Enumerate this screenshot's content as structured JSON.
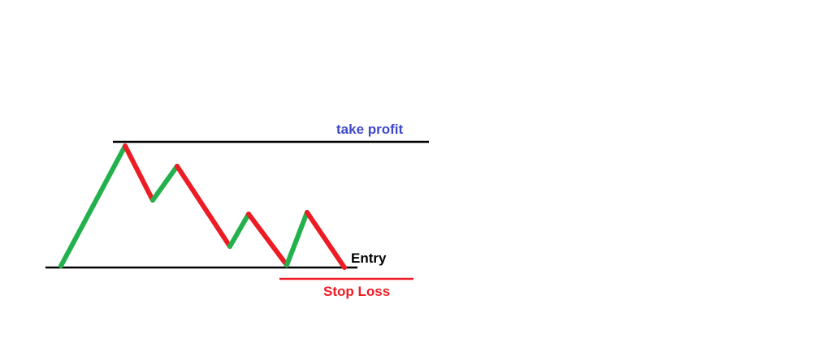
{
  "labels": {
    "take_profit": "take profit",
    "entry": "Entry",
    "stop_loss": "Stop Loss"
  },
  "colors": {
    "background": "#ffffff",
    "up_move": "#22b14c",
    "down_move": "#ed1c24",
    "take_profit_line": "#000000",
    "entry_line": "#000000",
    "stop_loss_line": "#ed1c24",
    "take_profit_text": "#3f48cc",
    "entry_text": "#000000",
    "stop_loss_text": "#ed1c24"
  },
  "price_path": {
    "directions": [
      "up",
      "down",
      "up",
      "down",
      "up",
      "down",
      "up",
      "down"
    ]
  }
}
